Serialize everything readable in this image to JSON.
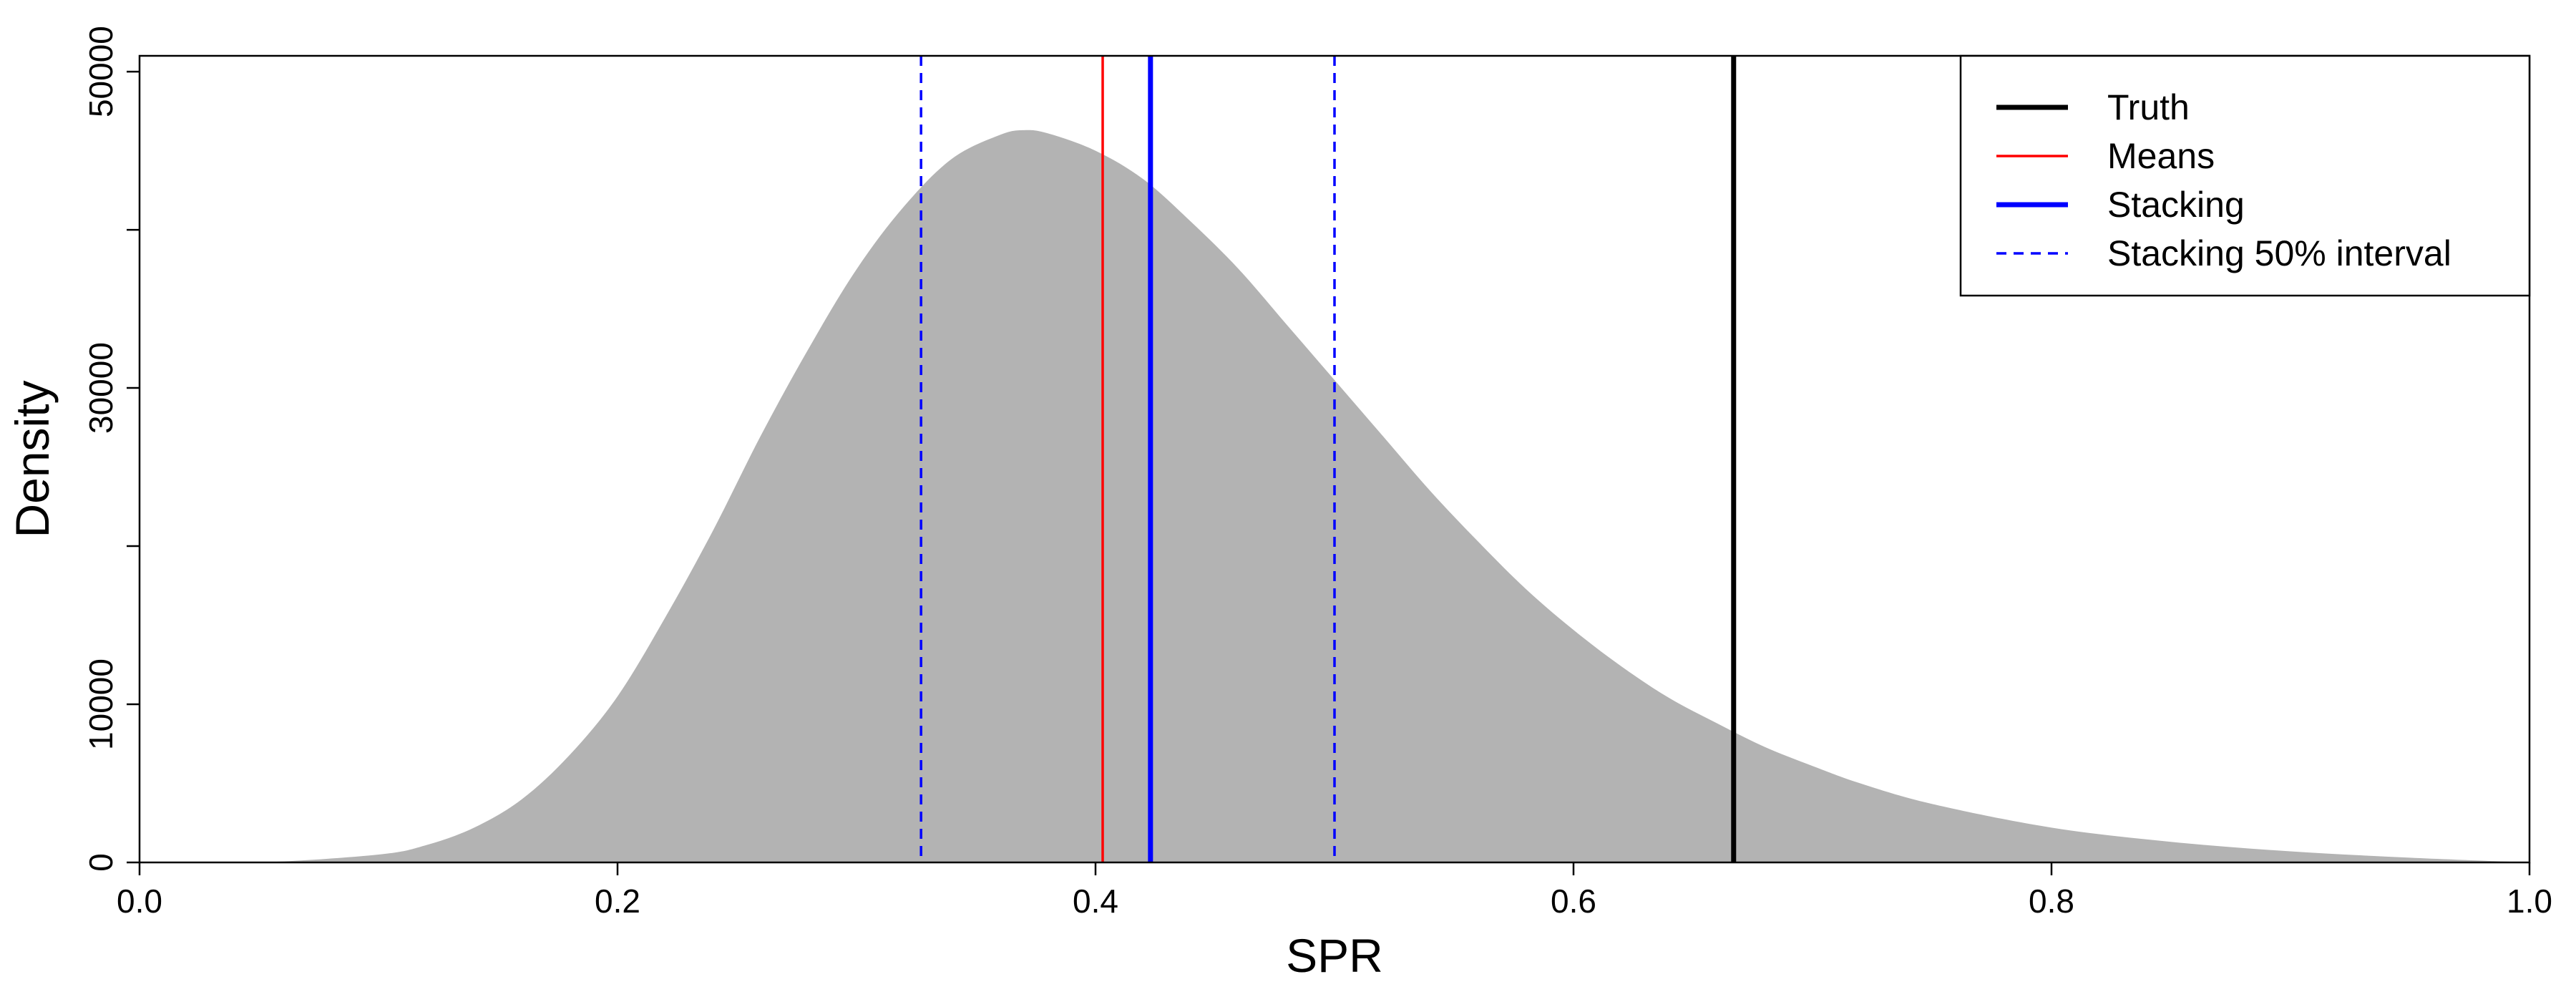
{
  "chart_data": {
    "type": "area",
    "title": "",
    "xlabel": "SPR",
    "ylabel": "Density",
    "xlim": [
      0.0,
      1.0
    ],
    "ylim": [
      0,
      51000
    ],
    "grid": false,
    "x_ticks": [
      0.0,
      0.2,
      0.4,
      0.6,
      0.8,
      1.0
    ],
    "x_tick_labels": [
      "0.0",
      "0.2",
      "0.4",
      "0.6",
      "0.8",
      "1.0"
    ],
    "y_ticks": [
      0,
      10000,
      20000,
      30000,
      40000,
      50000
    ],
    "y_tick_labels": [
      "0",
      "10000",
      "",
      "30000",
      "",
      "50000"
    ],
    "density": {
      "fill_color": "#b3b3b3",
      "x": [
        0.0,
        0.05,
        0.1,
        0.12,
        0.14,
        0.16,
        0.18,
        0.2,
        0.22,
        0.24,
        0.26,
        0.28,
        0.3,
        0.32,
        0.34,
        0.36,
        0.37,
        0.38,
        0.4,
        0.42,
        0.44,
        0.46,
        0.48,
        0.5,
        0.52,
        0.54,
        0.56,
        0.58,
        0.6,
        0.62,
        0.64,
        0.66,
        0.68,
        0.7,
        0.72,
        0.75,
        0.8,
        0.85,
        0.9,
        0.95,
        1.0
      ],
      "y": [
        0,
        0,
        500,
        1100,
        2200,
        4000,
        6800,
        10500,
        15500,
        21000,
        27000,
        32500,
        37500,
        41500,
        44500,
        46000,
        46300,
        46100,
        45000,
        43200,
        40500,
        37500,
        34000,
        30500,
        27000,
        23500,
        20300,
        17300,
        14700,
        12400,
        10400,
        8800,
        7300,
        6100,
        5000,
        3700,
        2200,
        1300,
        700,
        300,
        0
      ]
    },
    "lines": [
      {
        "name": "Truth",
        "x": 0.667,
        "color": "#000000",
        "style": "solid",
        "width": 7
      },
      {
        "name": "Means",
        "x": 0.403,
        "color": "#ff0000",
        "style": "solid",
        "width": 3.5
      },
      {
        "name": "Stacking",
        "x": 0.423,
        "color": "#0000ff",
        "style": "solid",
        "width": 7
      },
      {
        "name": "Stacking 50% interval",
        "x": [
          0.327,
          0.5
        ],
        "color": "#0000ff",
        "style": "dashed",
        "width": 3.5
      }
    ],
    "legend": {
      "placement": "top-right",
      "entries": [
        {
          "label": "Truth",
          "color": "#000000",
          "style": "solid",
          "width": 7
        },
        {
          "label": "Means",
          "color": "#ff0000",
          "style": "solid",
          "width": 3.5
        },
        {
          "label": "Stacking",
          "color": "#0000ff",
          "style": "solid",
          "width": 7
        },
        {
          "label": "Stacking 50% interval",
          "color": "#0000ff",
          "style": "dashed",
          "width": 3.5
        }
      ]
    }
  }
}
